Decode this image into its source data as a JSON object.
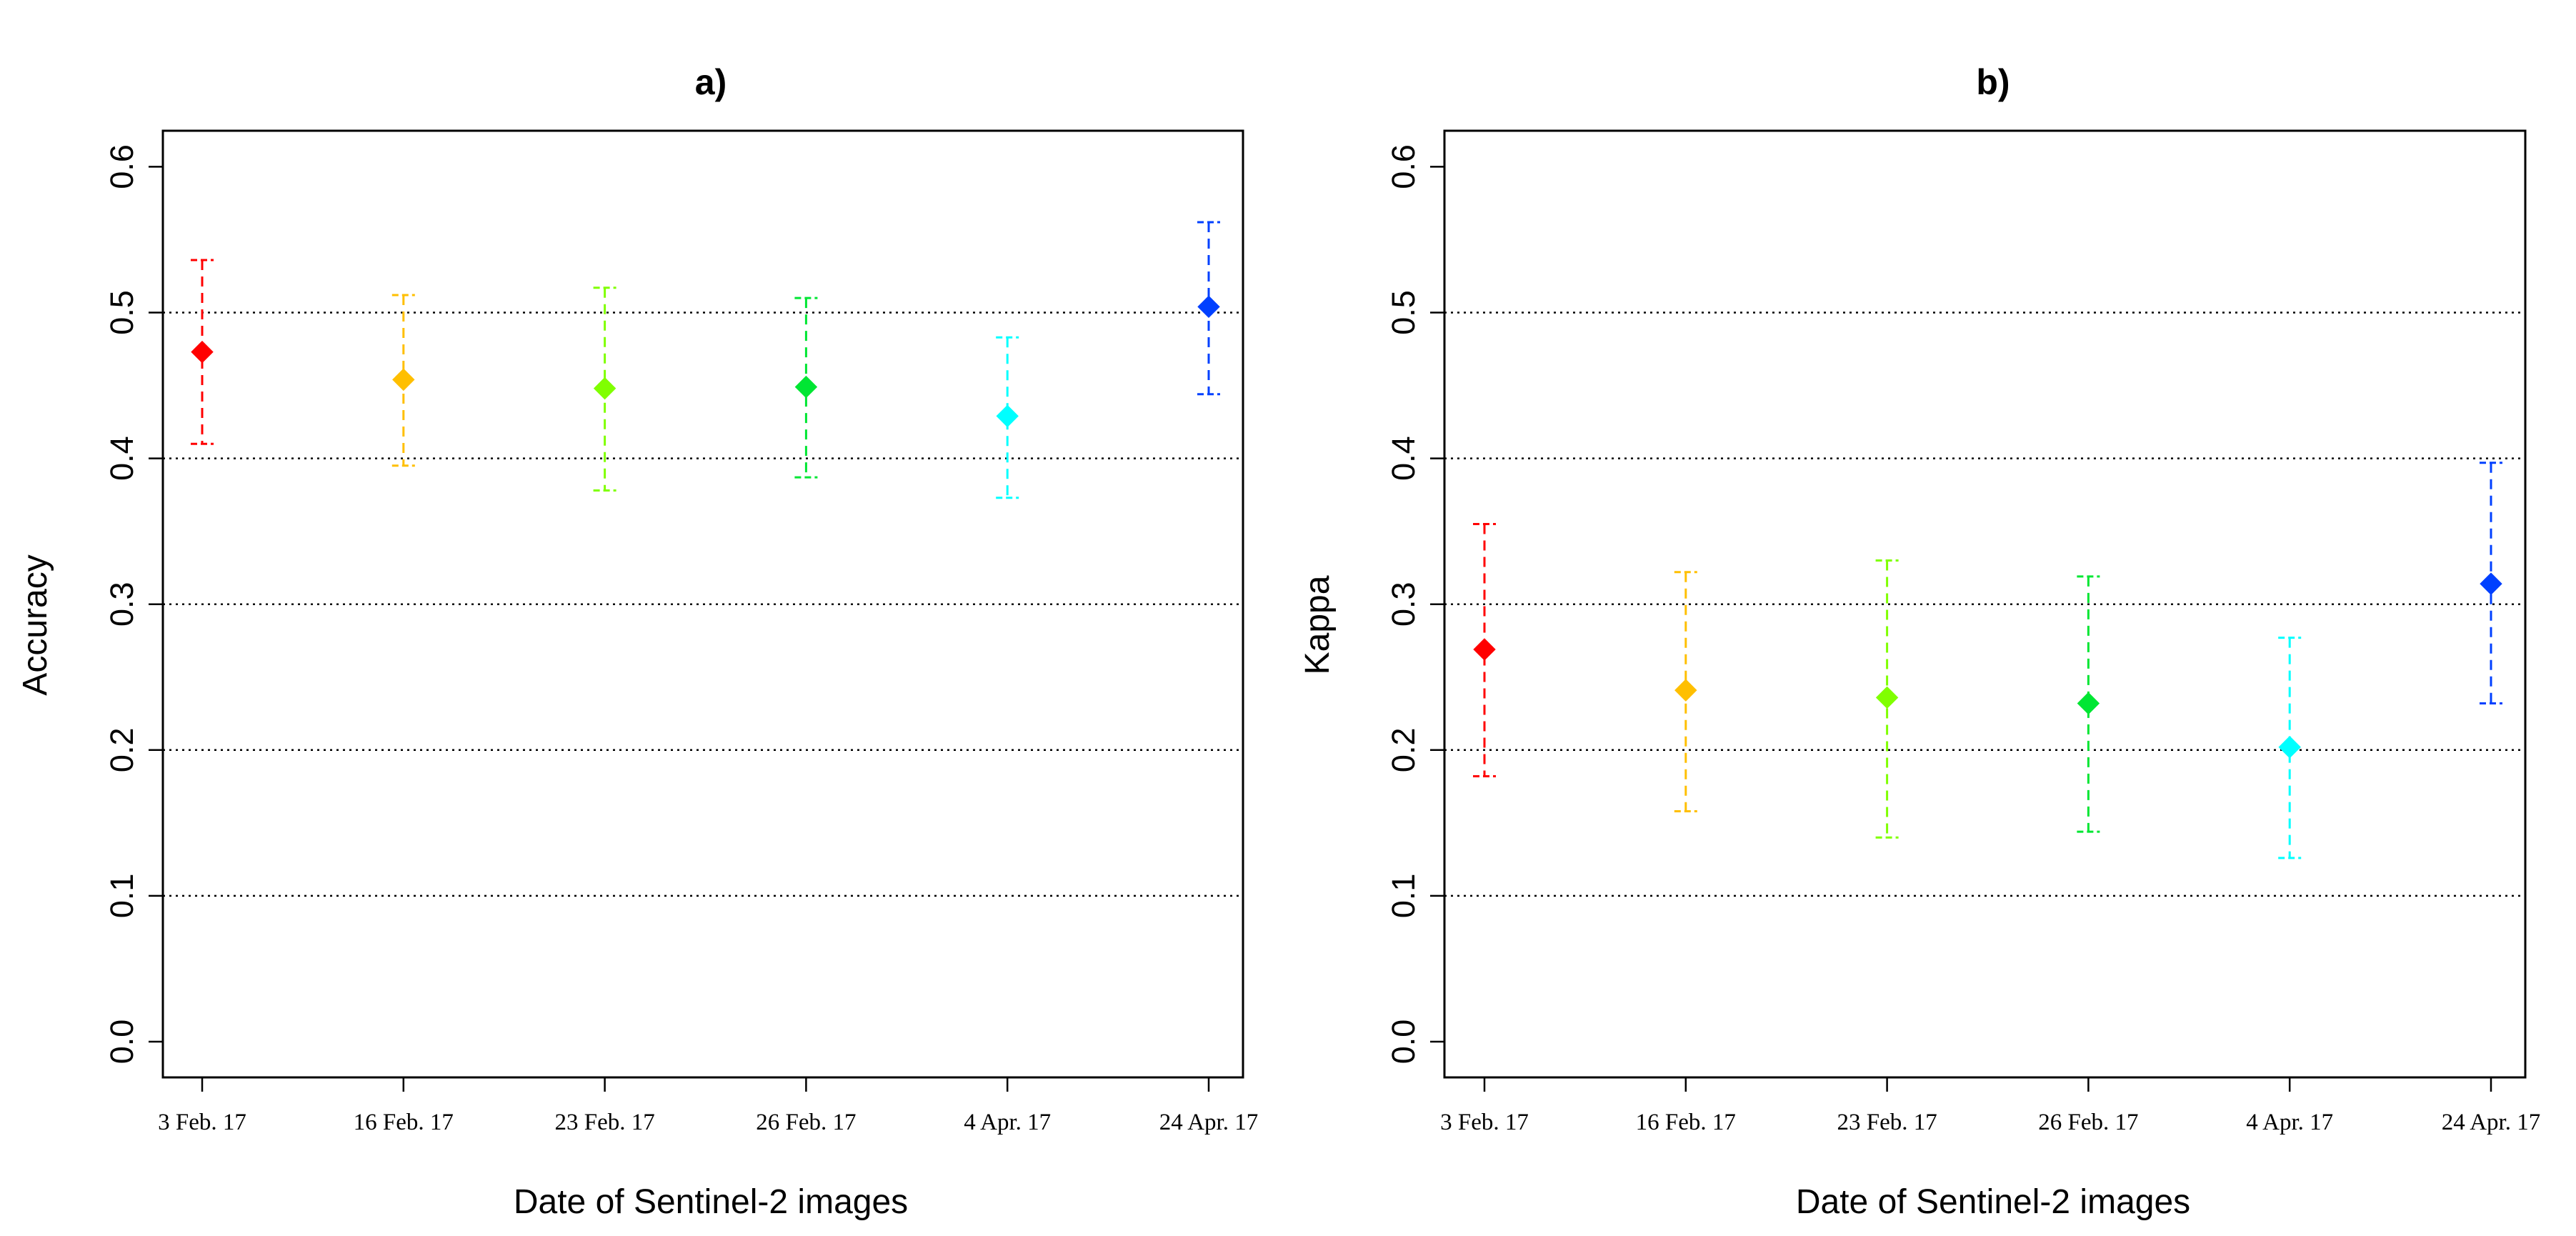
{
  "chart_data": [
    {
      "type": "scatter",
      "panel": "a",
      "title": "a)",
      "xlabel": "Date of Sentinel-2 images",
      "ylabel": "Accuracy",
      "ylim": [
        0,
        0.6
      ],
      "yticks": [
        "0.0",
        "0.1",
        "0.2",
        "0.3",
        "0.4",
        "0.5",
        "0.6"
      ],
      "gridlines_y": [
        0.1,
        0.2,
        0.3,
        0.4,
        0.5
      ],
      "grid": "horizontal dotted",
      "categories": [
        "3 Feb. 17",
        "16 Feb. 17",
        "23 Feb. 17",
        "26 Feb. 17",
        "4 Apr. 17",
        "24 Apr. 17"
      ],
      "colors": [
        "#ff0000",
        "#ffbf00",
        "#80ff00",
        "#00e633",
        "#00ffff",
        "#0040ff"
      ],
      "values": [
        0.473,
        0.454,
        0.448,
        0.449,
        0.429,
        0.504
      ],
      "lower": [
        0.41,
        0.395,
        0.378,
        0.387,
        0.373,
        0.444
      ],
      "upper": [
        0.536,
        0.512,
        0.517,
        0.51,
        0.483,
        0.562
      ]
    },
    {
      "type": "scatter",
      "panel": "b",
      "title": "b)",
      "xlabel": "Date of Sentinel-2 images",
      "ylabel": "Kappa",
      "ylim": [
        0,
        0.6
      ],
      "yticks": [
        "0.0",
        "0.1",
        "0.2",
        "0.3",
        "0.4",
        "0.5",
        "0.6"
      ],
      "gridlines_y": [
        0.1,
        0.2,
        0.3,
        0.4,
        0.5
      ],
      "grid": "horizontal dotted",
      "categories": [
        "3 Feb. 17",
        "16 Feb. 17",
        "23 Feb. 17",
        "26 Feb. 17",
        "4 Apr. 17",
        "24 Apr. 17"
      ],
      "colors": [
        "#ff0000",
        "#ffbf00",
        "#80ff00",
        "#00e633",
        "#00ffff",
        "#0040ff"
      ],
      "values": [
        0.269,
        0.241,
        0.236,
        0.232,
        0.202,
        0.314
      ],
      "lower": [
        0.182,
        0.158,
        0.14,
        0.144,
        0.126,
        0.232
      ],
      "upper": [
        0.355,
        0.322,
        0.33,
        0.319,
        0.277,
        0.397
      ]
    }
  ]
}
